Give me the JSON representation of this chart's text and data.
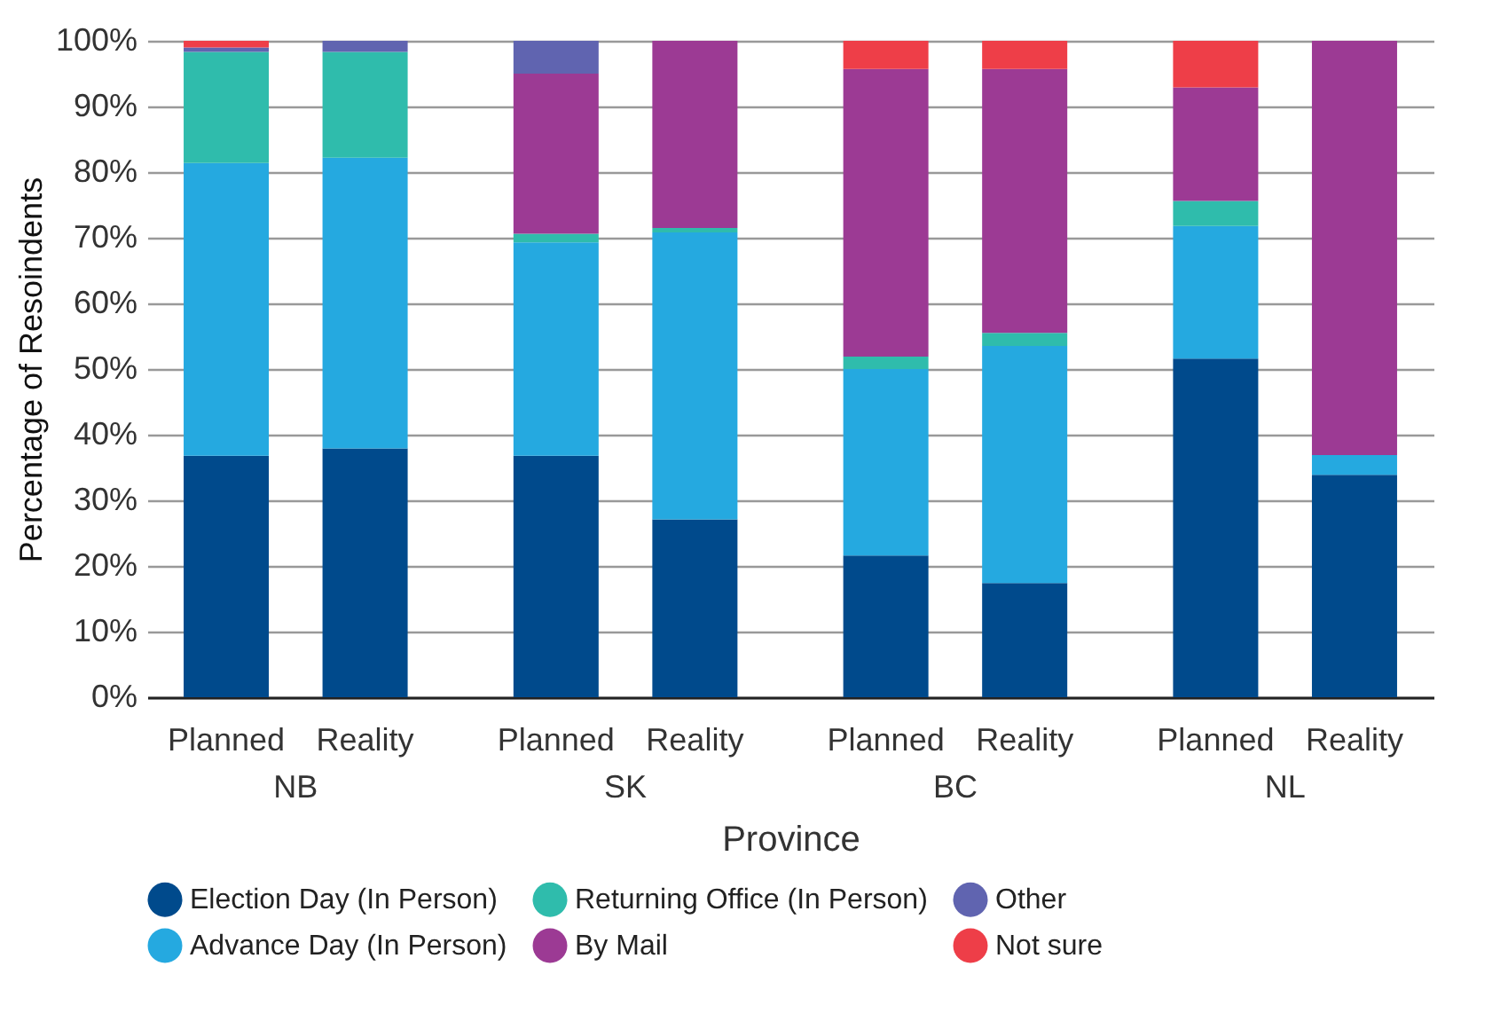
{
  "chart_data": {
    "type": "bar",
    "stacked": true,
    "xlabel": "Province",
    "ylabel": "Percentage of Resoindents",
    "categories": [
      "Planned",
      "Reality",
      "Planned",
      "Reality",
      "Planned",
      "Reality",
      "Planned",
      "Reality"
    ],
    "annotations": [
      "NB",
      "SK",
      "BC",
      "NL"
    ],
    "series": [
      {
        "name": "Election Day (In Person)",
        "color": "#004a8c",
        "values": [
          36.8,
          37.9,
          36.8,
          27.1,
          21.6,
          17.4,
          51.6,
          33.9
        ]
      },
      {
        "name": "Advance Day (In Person)",
        "color": "#25a9e0",
        "values": [
          44.6,
          44.3,
          32.5,
          43.7,
          28.4,
          36.1,
          20.2,
          3.0
        ]
      },
      {
        "name": "Returning Office (In Person)",
        "color": "#2fbcac",
        "values": [
          16.9,
          16.1,
          1.3,
          0.7,
          1.9,
          2.0,
          3.8,
          null
        ]
      },
      {
        "name": "By Mail",
        "color": "#9c3a94",
        "values": [
          null,
          null,
          24.4,
          28.5,
          43.8,
          40.2,
          17.3,
          63.1
        ]
      },
      {
        "name": "Other",
        "color": "#6064b0",
        "values": [
          0.7,
          1.7,
          5.0,
          null,
          null,
          null,
          null,
          null
        ]
      },
      {
        "name": "Not sure",
        "color": "#ee3e48",
        "values": [
          1.0,
          null,
          null,
          null,
          4.3,
          4.3,
          7.1,
          null
        ]
      }
    ],
    "ylim": [
      0,
      100
    ],
    "yticks": [
      {
        "value": 0,
        "label": "0%"
      },
      {
        "value": 10,
        "label": "10%"
      },
      {
        "value": 20,
        "label": "20%"
      },
      {
        "value": 30,
        "label": "30%"
      },
      {
        "value": 40,
        "label": "40%"
      },
      {
        "value": 50,
        "label": "50%"
      },
      {
        "value": 60,
        "label": "60%"
      },
      {
        "value": 70,
        "label": "70%"
      },
      {
        "value": 80,
        "label": "80%"
      },
      {
        "value": 90,
        "label": "90%"
      },
      {
        "value": 100,
        "label": "100%"
      }
    ],
    "grid": "y",
    "legend": "bottom"
  }
}
